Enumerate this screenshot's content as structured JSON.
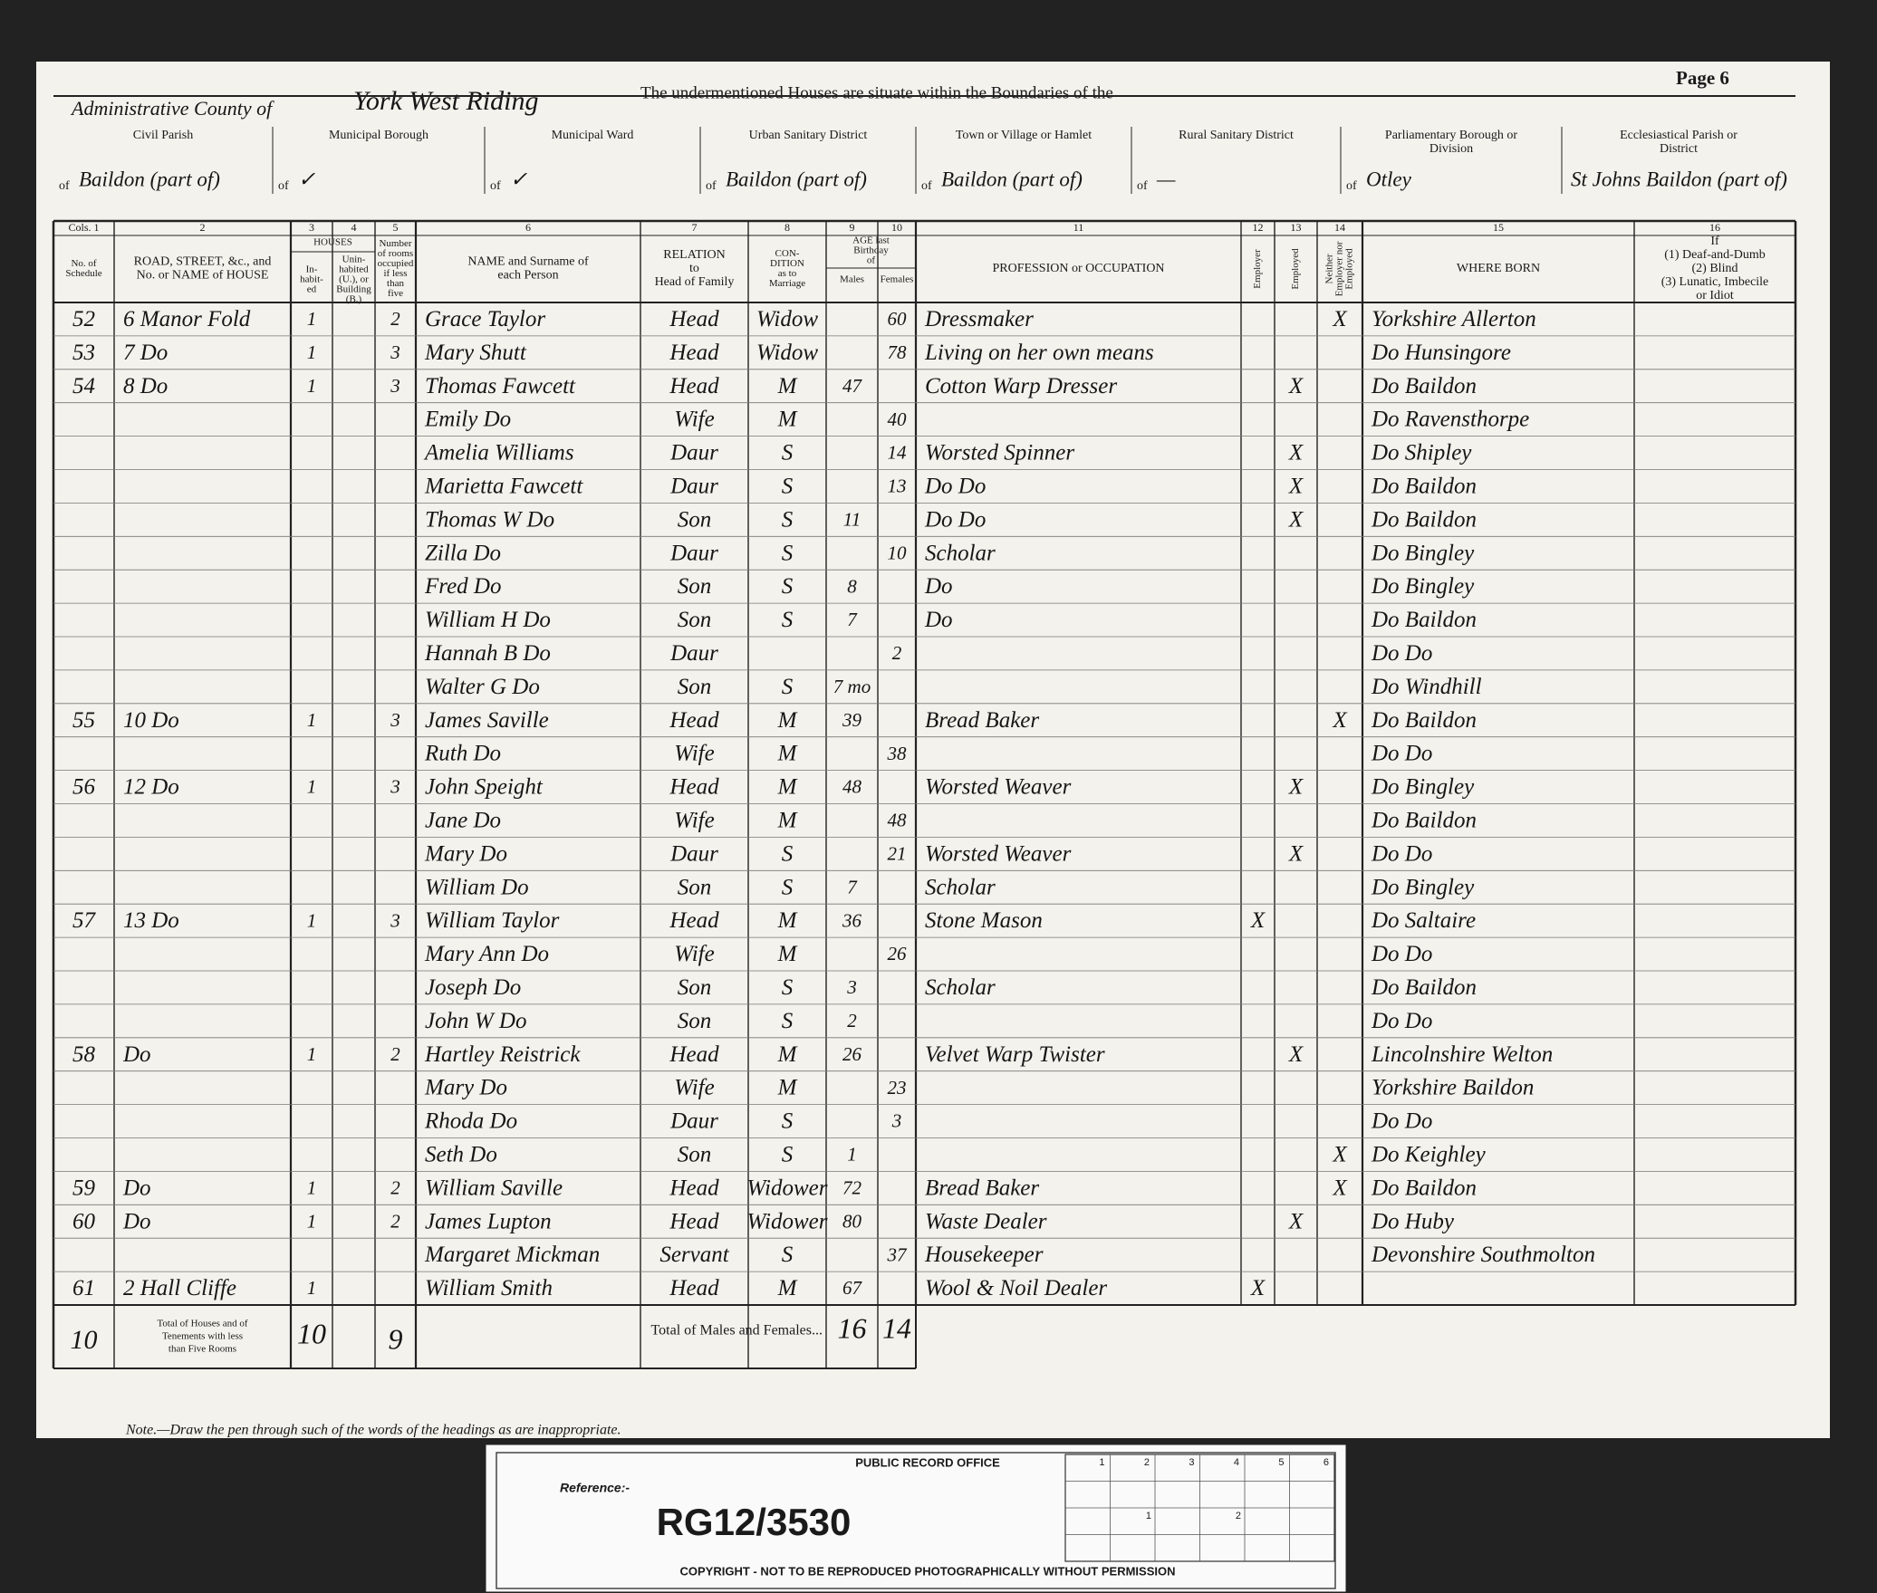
{
  "header": {
    "county_label": "Administrative County of",
    "county": "York West Riding",
    "intro": "The undermentioned Houses are situate within the Boundaries of the",
    "page": "Page 6",
    "districts": [
      {
        "label": [
          "Civil Parish"
        ],
        "prefix": "of",
        "value": "Baildon (part of)"
      },
      {
        "label": [
          "Municipal Borough"
        ],
        "prefix": "of",
        "value": "✓"
      },
      {
        "label": [
          "Municipal Ward"
        ],
        "prefix": "of",
        "value": "✓"
      },
      {
        "label": [
          "Urban Sanitary District"
        ],
        "prefix": "of",
        "value": "Baildon (part of)"
      },
      {
        "label": [
          "Town or Village or Hamlet"
        ],
        "prefix": "of",
        "value": "Baildon (part of)"
      },
      {
        "label": [
          "Rural Sanitary District"
        ],
        "prefix": "of",
        "value": "—"
      },
      {
        "label": [
          "Parliamentary Borough or",
          "Division"
        ],
        "prefix": "of",
        "value": "Otley"
      },
      {
        "label": [
          "Ecclesiastical Parish or",
          "District"
        ],
        "value": "St Johns Baildon (part of)"
      }
    ]
  },
  "columns": [
    {
      "number": "Cols. 1",
      "heading": [
        "No. of",
        "Schedule"
      ]
    },
    {
      "number": "2",
      "heading": [
        "ROAD, STREET, &c., and",
        "No. or NAME of HOUSE"
      ]
    },
    {
      "number": "3",
      "heading": [
        "In-",
        "habit-",
        "ed"
      ]
    },
    {
      "number": "4",
      "heading": [
        "Unin-",
        "habited",
        "(U.), or",
        "Building",
        "(B.)"
      ]
    },
    {
      "number": "5",
      "heading": [
        "Number",
        "of rooms",
        "occupied",
        "if less",
        "than",
        "five"
      ]
    },
    {
      "number": "6",
      "heading": [
        "NAME and Surname of",
        "each Person"
      ]
    },
    {
      "number": "7",
      "heading": [
        "RELATION",
        "to",
        "Head of Family"
      ]
    },
    {
      "number": "8",
      "heading": [
        "CON-",
        "DITION",
        "as to",
        "Marriage"
      ]
    },
    {
      "number": "9",
      "heading": [
        "Males"
      ]
    },
    {
      "number": "10",
      "heading": [
        "Females"
      ]
    },
    {
      "number": "11",
      "heading": [
        "PROFESSION or OCCUPATION"
      ]
    },
    {
      "number": "12",
      "heading": [
        "Employer"
      ]
    },
    {
      "number": "13",
      "heading": [
        "Employed"
      ]
    },
    {
      "number": "14",
      "heading": [
        "Neither",
        "Employer nor",
        "Employed"
      ]
    },
    {
      "number": "15",
      "heading": [
        "WHERE BORN"
      ]
    },
    {
      "number": "16",
      "heading": [
        "If",
        "(1) Deaf-and-Dumb",
        "(2) Blind",
        "(3) Lunatic, Imbecile",
        "or Idiot"
      ]
    }
  ],
  "column_groups": [
    {
      "label": [
        "HOUSES"
      ]
    },
    {
      "label": [
        "AGE last",
        "Birthday",
        "of"
      ]
    }
  ],
  "rows": [
    {
      "sch": "52",
      "addr": "6 Manor Fold",
      "inh": "1",
      "rooms": "2",
      "name": "Grace Taylor",
      "rel": "Head",
      "cond": "Widow",
      "f": "60",
      "occ": "Dressmaker",
      "nei": "X",
      "born": "Yorkshire Allerton"
    },
    {
      "sch": "53",
      "addr": "7 Do",
      "inh": "1",
      "rooms": "3",
      "name": "Mary Shutt",
      "rel": "Head",
      "cond": "Widow",
      "f": "78",
      "occ": "Living on her own means",
      "born": "Do Hunsingore"
    },
    {
      "sch": "54",
      "addr": "8 Do",
      "inh": "1",
      "rooms": "3",
      "name": "Thomas Fawcett",
      "rel": "Head",
      "cond": "M",
      "m": "47",
      "occ": "Cotton Warp Dresser",
      "ed": "X",
      "born": "Do Baildon"
    },
    {
      "name": "Emily Do",
      "rel": "Wife",
      "cond": "M",
      "f": "40",
      "born": "Do Ravensthorpe"
    },
    {
      "name": "Amelia Williams",
      "rel": "Daur",
      "cond": "S",
      "f": "14",
      "occ": "Worsted Spinner",
      "ed": "X",
      "born": "Do Shipley"
    },
    {
      "name": "Marietta Fawcett",
      "rel": "Daur",
      "cond": "S",
      "f": "13",
      "occ": "Do Do",
      "ed": "X",
      "born": "Do Baildon"
    },
    {
      "name": "Thomas W Do",
      "rel": "Son",
      "cond": "S",
      "m": "11",
      "occ": "Do Do",
      "ed": "X",
      "born": "Do Baildon"
    },
    {
      "name": "Zilla Do",
      "rel": "Daur",
      "cond": "S",
      "f": "10",
      "occ": "Scholar",
      "born": "Do Bingley"
    },
    {
      "name": "Fred Do",
      "rel": "Son",
      "cond": "S",
      "m": "8",
      "occ": "Do",
      "born": "Do Bingley"
    },
    {
      "name": "William H Do",
      "rel": "Son",
      "cond": "S",
      "m": "7",
      "occ": "Do",
      "born": "Do Baildon"
    },
    {
      "name": "Hannah B Do",
      "rel": "Daur",
      "f": "2",
      "born": "Do Do"
    },
    {
      "name": "Walter G Do",
      "rel": "Son",
      "cond": "S",
      "m": "7 mo",
      "born": "Do Windhill"
    },
    {
      "sch": "55",
      "addr": "10 Do",
      "inh": "1",
      "rooms": "3",
      "name": "James Saville",
      "rel": "Head",
      "cond": "M",
      "m": "39",
      "occ": "Bread Baker",
      "nei": "X",
      "born": "Do Baildon"
    },
    {
      "name": "Ruth Do",
      "rel": "Wife",
      "cond": "M",
      "f": "38",
      "born": "Do Do"
    },
    {
      "sch": "56",
      "addr": "12 Do",
      "inh": "1",
      "rooms": "3",
      "name": "John Speight",
      "rel": "Head",
      "cond": "M",
      "m": "48",
      "occ": "Worsted Weaver",
      "ed": "X",
      "born": "Do Bingley"
    },
    {
      "name": "Jane Do",
      "rel": "Wife",
      "cond": "M",
      "f": "48",
      "born": "Do Baildon"
    },
    {
      "name": "Mary Do",
      "rel": "Daur",
      "cond": "S",
      "f": "21",
      "occ": "Worsted Weaver",
      "ed": "X",
      "born": "Do Do"
    },
    {
      "name": "William Do",
      "rel": "Son",
      "cond": "S",
      "m": "7",
      "occ": "Scholar",
      "born": "Do Bingley"
    },
    {
      "sch": "57",
      "addr": "13 Do",
      "inh": "1",
      "rooms": "3",
      "name": "William Taylor",
      "rel": "Head",
      "cond": "M",
      "m": "36",
      "occ": "Stone Mason",
      "er": "X",
      "born": "Do Saltaire"
    },
    {
      "name": "Mary Ann Do",
      "rel": "Wife",
      "cond": "M",
      "f": "26",
      "born": "Do Do"
    },
    {
      "name": "Joseph Do",
      "rel": "Son",
      "cond": "S",
      "m": "3",
      "occ": "Scholar",
      "born": "Do Baildon"
    },
    {
      "name": "John W Do",
      "rel": "Son",
      "cond": "S",
      "m": "2",
      "born": "Do Do"
    },
    {
      "sch": "58",
      "addr": "Do",
      "inh": "1",
      "rooms": "2",
      "name": "Hartley Reistrick",
      "rel": "Head",
      "cond": "M",
      "m": "26",
      "occ": "Velvet Warp Twister",
      "ed": "X",
      "born": "Lincolnshire Welton"
    },
    {
      "name": "Mary Do",
      "rel": "Wife",
      "cond": "M",
      "f": "23",
      "born": "Yorkshire Baildon"
    },
    {
      "name": "Rhoda Do",
      "rel": "Daur",
      "cond": "S",
      "f": "3",
      "born": "Do Do"
    },
    {
      "name": "Seth Do",
      "rel": "Son",
      "cond": "S",
      "m": "1",
      "nei": "X",
      "born": "Do Keighley"
    },
    {
      "sch": "59",
      "addr": "Do",
      "inh": "1",
      "rooms": "2",
      "name": "William Saville",
      "rel": "Head",
      "cond": "Widower",
      "m": "72",
      "occ": "Bread Baker",
      "nei": "X",
      "born": "Do Baildon"
    },
    {
      "sch": "60",
      "addr": "Do",
      "inh": "1",
      "rooms": "2",
      "name": "James Lupton",
      "rel": "Head",
      "cond": "Widower",
      "m": "80",
      "occ": "Waste Dealer",
      "ed": "X",
      "born": "Do Huby"
    },
    {
      "name": "Margaret Mickman",
      "rel": "Servant",
      "cond": "S",
      "f": "37",
      "occ": "Housekeeper",
      "born": "Devonshire Southmolton"
    },
    {
      "sch": "61",
      "addr": "2 Hall Cliffe",
      "inh": "1",
      "name": "William Smith",
      "rel": "Head",
      "cond": "M",
      "m": "67",
      "occ": "Wool & Noil Dealer",
      "er": "X"
    }
  ],
  "totals": {
    "schedules": "10",
    "houses_label": [
      "Total of Houses and of",
      "Tenements with less",
      "than Five Rooms"
    ],
    "inhabited": "10",
    "rooms": "9",
    "label": "Total of Males and Females...",
    "males": "16",
    "females": "14"
  },
  "note": "Note.—Draw the pen through such of the words of the headings as are inappropriate.",
  "reference": {
    "office": "PUBLIC RECORD OFFICE",
    "label": "Reference:-",
    "code": "RG12/3530",
    "copyright": "COPYRIGHT - NOT TO BE REPRODUCED PHOTOGRAPHICALLY WITHOUT PERMISSION",
    "scale_top": [
      "1",
      "2",
      "3",
      "4",
      "5",
      "6"
    ],
    "scale_mid": [
      "1",
      "2"
    ]
  }
}
